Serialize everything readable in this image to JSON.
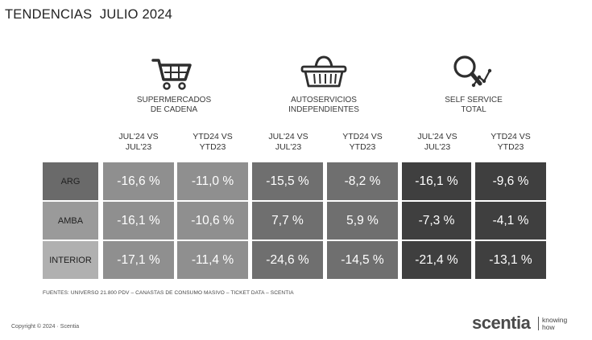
{
  "title": "TENDENCIAS  JULIO 2024",
  "categories": [
    {
      "label_line1": "SUPERMERCADOS",
      "label_line2": "DE CADENA",
      "icon": "shopping-cart-icon"
    },
    {
      "label_line1": "AUTOSERVICIOS",
      "label_line2": "INDEPENDIENTES",
      "icon": "shopping-basket-icon"
    },
    {
      "label_line1": "SELF SERVICE",
      "label_line2": "TOTAL",
      "icon": "magnifier-chart-icon"
    }
  ],
  "column_headers": [
    {
      "line1": "JUL'24 VS",
      "line2": "JUL'23"
    },
    {
      "line1": "YTD24 VS",
      "line2": "YTD23"
    },
    {
      "line1": "JUL'24 VS",
      "line2": "JUL'23"
    },
    {
      "line1": "YTD24 VS",
      "line2": "YTD23"
    },
    {
      "line1": "JUL'24 VS",
      "line2": "JUL'23"
    },
    {
      "line1": "YTD24 VS",
      "line2": "YTD23"
    }
  ],
  "rows": [
    {
      "label": "ARG",
      "values": [
        "-16,6 %",
        "-11,0 %",
        "-15,5 %",
        "-8,2 %",
        "-16,1 %",
        "-9,6 %"
      ]
    },
    {
      "label": "AMBA",
      "values": [
        "-16,1 %",
        "-10,6 %",
        "7,7 %",
        "5,9 %",
        "-7,3 %",
        "-4,1 %"
      ]
    },
    {
      "label": "INTERIOR",
      "values": [
        "-17,1 %",
        "-11,4 %",
        "-24,6 %",
        "-14,5 %",
        "-21,4 %",
        "-13,1 %"
      ]
    }
  ],
  "sources": "FUENTES: UNIVERSO 21.800 PDV – CANASTAS DE CONSUMO MASIVO – TICKET DATA  – SCENTIA",
  "copyright": "Copyright © 2024 · Scentia",
  "brand": {
    "name": "scentia",
    "tagline_line1": "knowing",
    "tagline_line2": "how"
  },
  "colors": {
    "row_label_bg": [
      "#6a6a6a",
      "#9a9a9a",
      "#b0b0b0"
    ],
    "group1_cells": "#8f8f8f",
    "group2_cells": "#6f6f6f",
    "group3_cells": "#3f3f3f"
  }
}
